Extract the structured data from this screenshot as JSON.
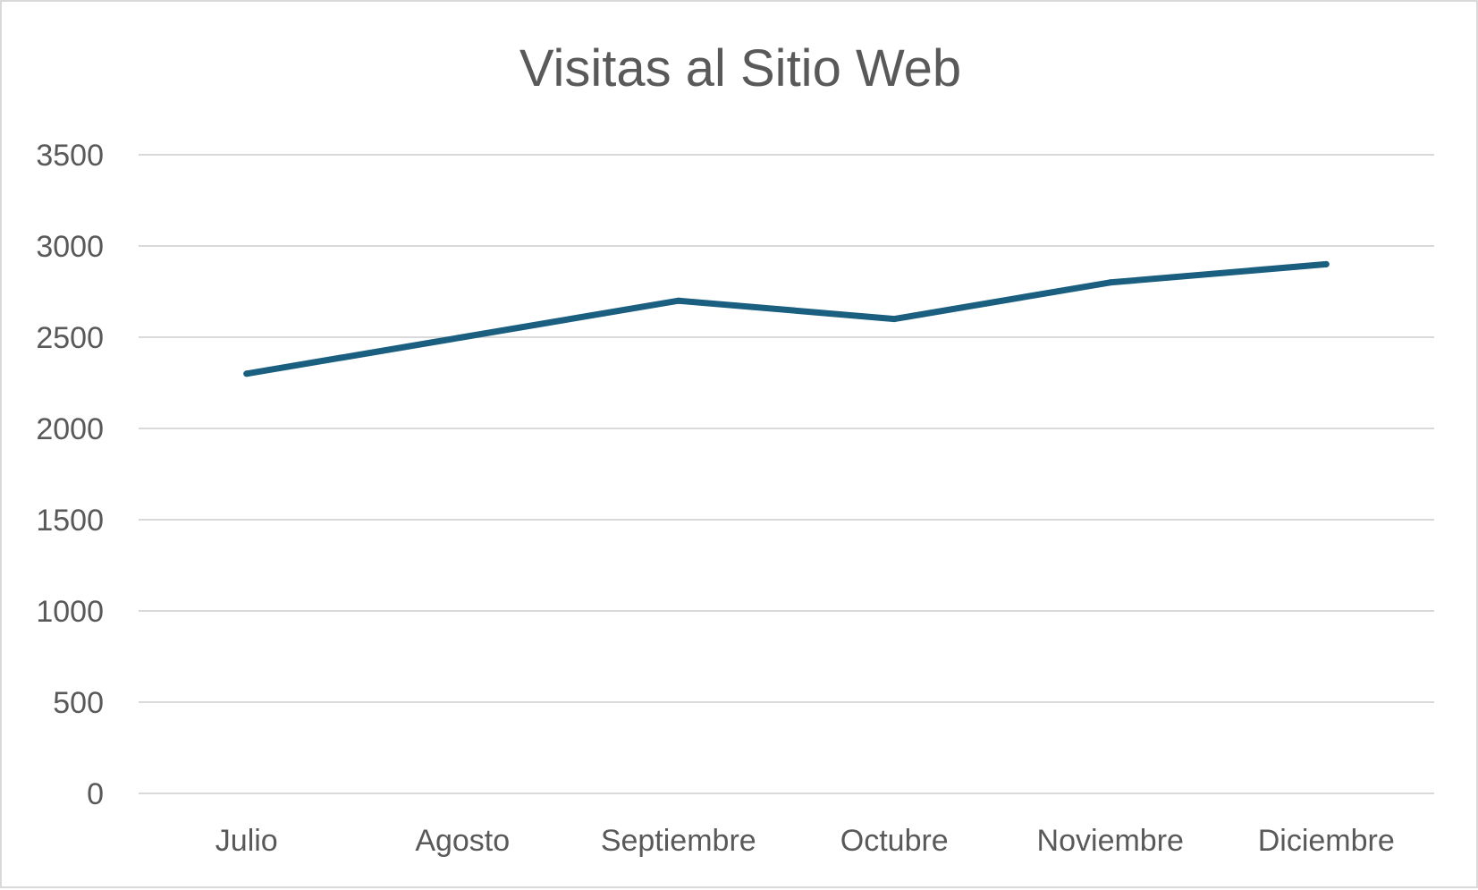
{
  "chart_data": {
    "type": "line",
    "title": "Visitas al Sitio Web",
    "xlabel": "",
    "ylabel": "",
    "categories": [
      "Julio",
      "Agosto",
      "Septiembre",
      "Octubre",
      "Noviembre",
      "Diciembre"
    ],
    "series": [
      {
        "values": [
          2300,
          2500,
          2700,
          2600,
          2800,
          2900
        ],
        "color": "#1a5e80"
      }
    ],
    "ylim": [
      0,
      3500
    ],
    "yticks": [
      0,
      500,
      1000,
      1500,
      2000,
      2500,
      3000,
      3500
    ],
    "grid": true,
    "legend": "none"
  }
}
